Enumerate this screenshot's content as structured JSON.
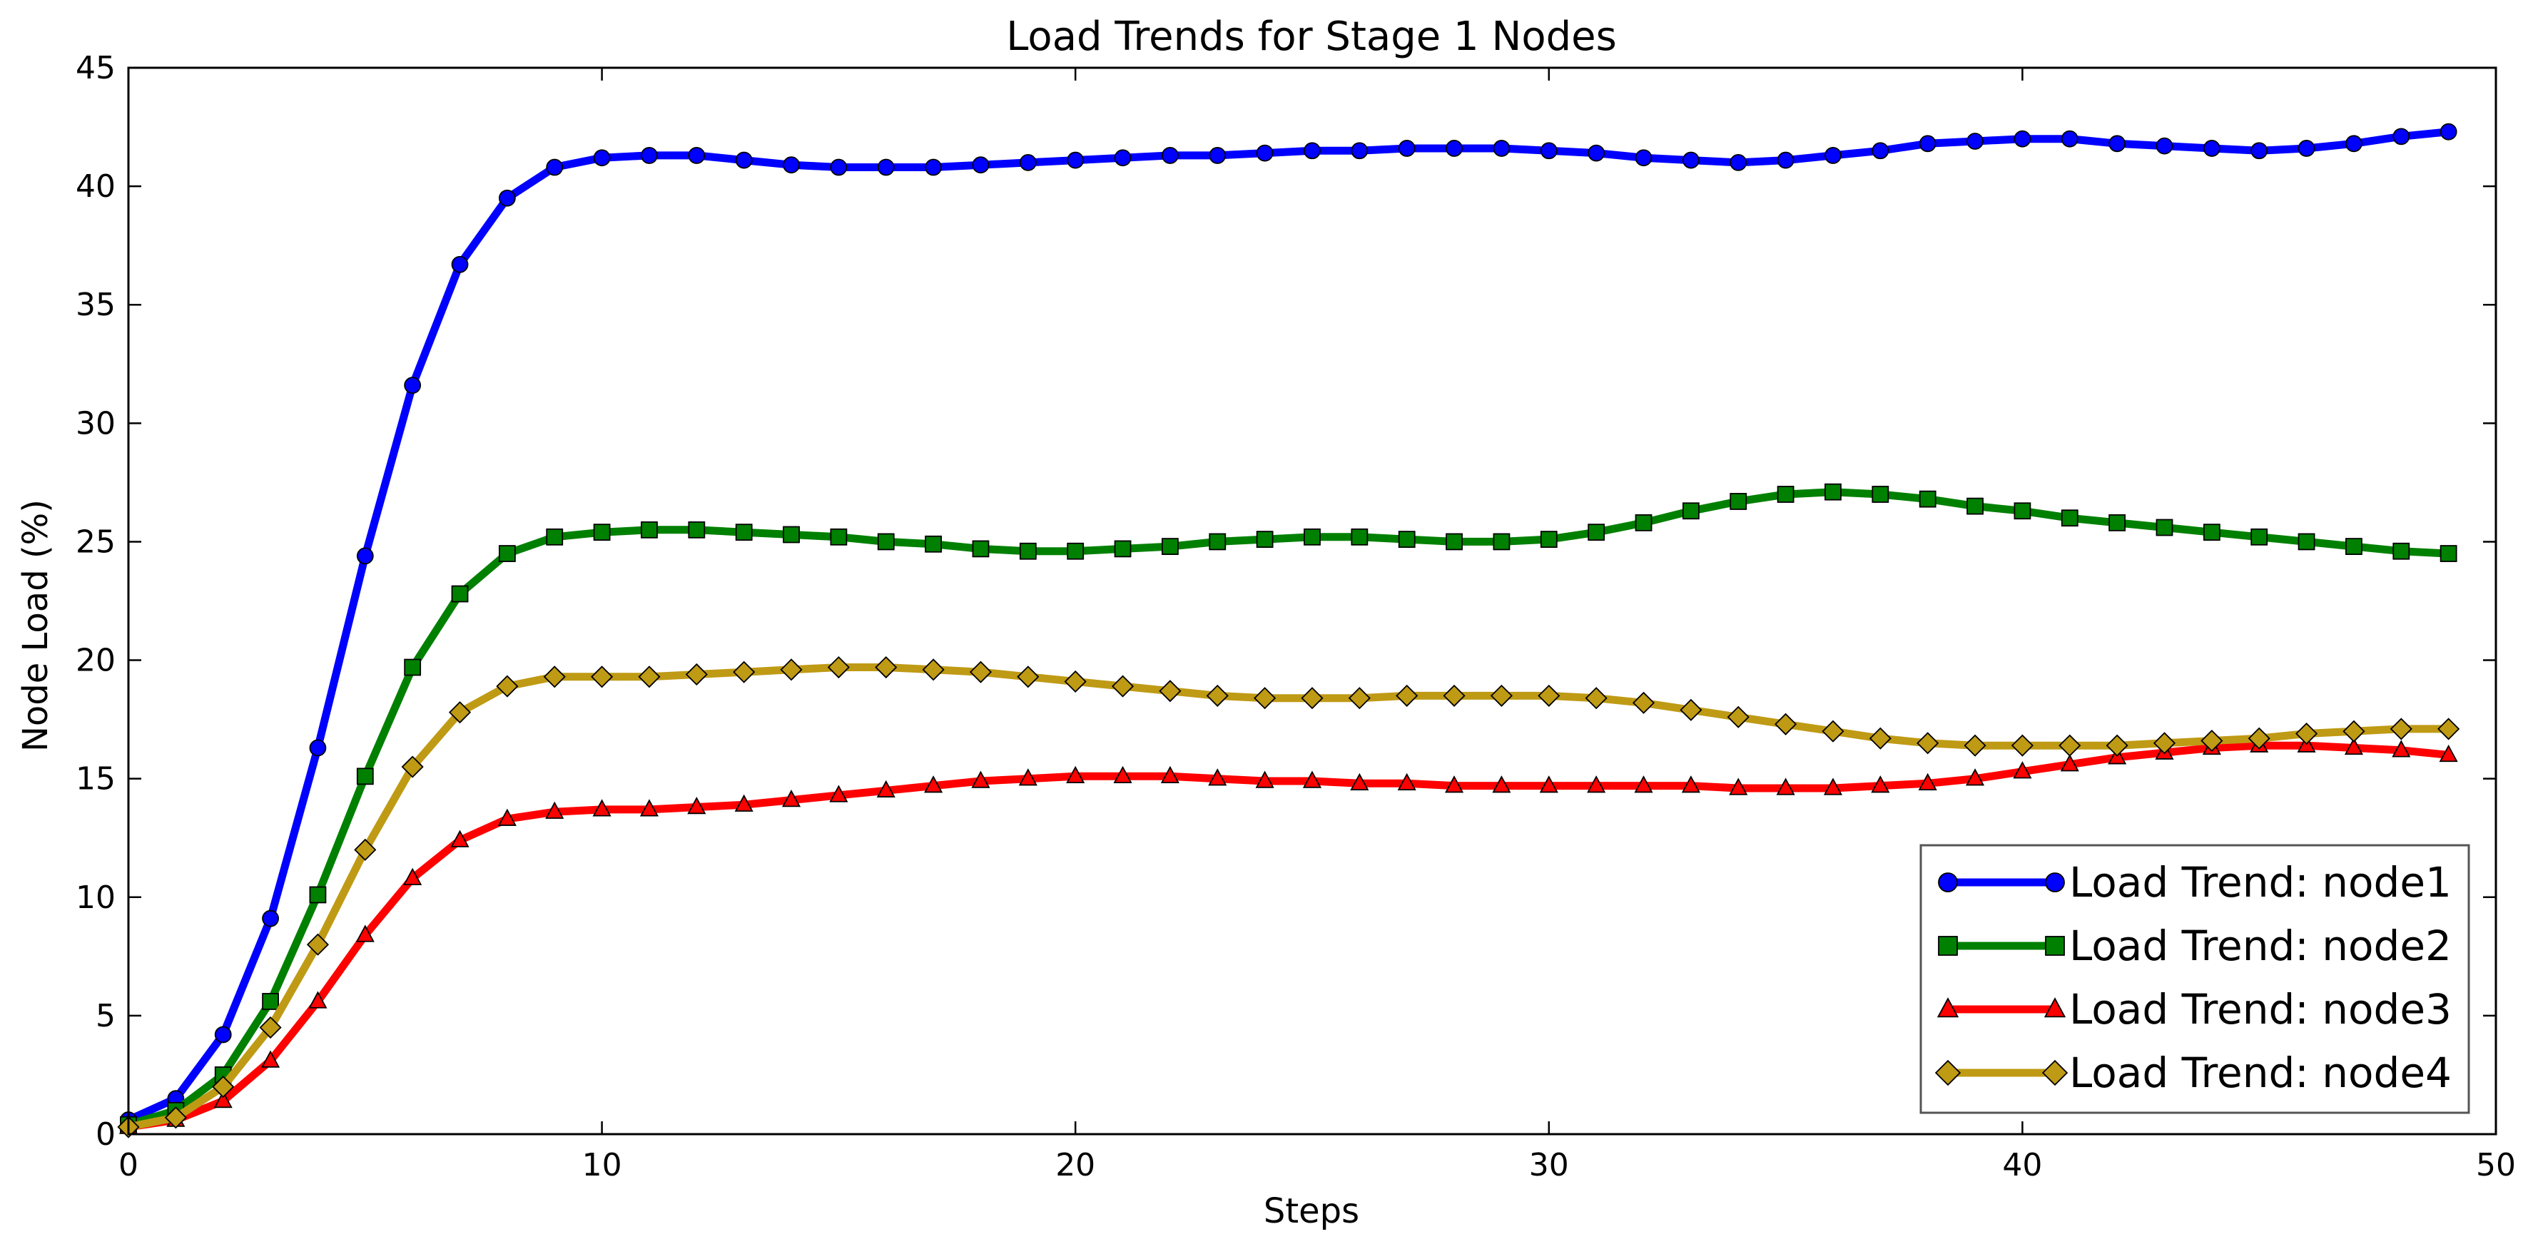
{
  "chart_data": {
    "type": "line",
    "title": "Load Trends for Stage 1 Nodes",
    "xlabel": "Steps",
    "ylabel": "Node Load (%)",
    "xlim": [
      0,
      50
    ],
    "ylim": [
      0,
      45
    ],
    "xticks": [
      0,
      10,
      20,
      30,
      40,
      50
    ],
    "yticks": [
      0,
      5,
      10,
      15,
      20,
      25,
      30,
      35,
      40,
      45
    ],
    "grid": false,
    "legend_position": "lower-right",
    "x": [
      0,
      1,
      2,
      3,
      4,
      5,
      6,
      7,
      8,
      9,
      10,
      11,
      12,
      13,
      14,
      15,
      16,
      17,
      18,
      19,
      20,
      21,
      22,
      23,
      24,
      25,
      26,
      27,
      28,
      29,
      30,
      31,
      32,
      33,
      34,
      35,
      36,
      37,
      38,
      39,
      40,
      41,
      42,
      43,
      44,
      45,
      46,
      47,
      48,
      49
    ],
    "series": [
      {
        "name": "Load Trend: node1",
        "color": "#0000ff",
        "marker": "circle",
        "values": [
          0.6,
          1.5,
          4.2,
          9.1,
          16.3,
          24.4,
          31.6,
          36.7,
          39.5,
          40.8,
          41.2,
          41.3,
          41.3,
          41.1,
          40.9,
          40.8,
          40.8,
          40.8,
          40.9,
          41.0,
          41.1,
          41.2,
          41.3,
          41.3,
          41.4,
          41.5,
          41.5,
          41.6,
          41.6,
          41.6,
          41.5,
          41.4,
          41.2,
          41.1,
          41.0,
          41.1,
          41.3,
          41.5,
          41.8,
          41.9,
          42.0,
          42.0,
          41.8,
          41.7,
          41.6,
          41.5,
          41.6,
          41.8,
          42.1,
          42.3
        ]
      },
      {
        "name": "Load Trend: node2",
        "color": "#008000",
        "marker": "square",
        "values": [
          0.4,
          1.0,
          2.5,
          5.6,
          10.1,
          15.1,
          19.7,
          22.8,
          24.5,
          25.2,
          25.4,
          25.5,
          25.5,
          25.4,
          25.3,
          25.2,
          25.0,
          24.9,
          24.7,
          24.6,
          24.6,
          24.7,
          24.8,
          25.0,
          25.1,
          25.2,
          25.2,
          25.1,
          25.0,
          25.0,
          25.1,
          25.4,
          25.8,
          26.3,
          26.7,
          27.0,
          27.1,
          27.0,
          26.8,
          26.5,
          26.3,
          26.0,
          25.8,
          25.6,
          25.4,
          25.2,
          25.0,
          24.8,
          24.6,
          24.5
        ]
      },
      {
        "name": "Load Trend: node3",
        "color": "#ff0000",
        "marker": "triangle",
        "values": [
          0.3,
          0.6,
          1.4,
          3.1,
          5.6,
          8.4,
          10.8,
          12.4,
          13.3,
          13.6,
          13.7,
          13.7,
          13.8,
          13.9,
          14.1,
          14.3,
          14.5,
          14.7,
          14.9,
          15.0,
          15.1,
          15.1,
          15.1,
          15.0,
          14.9,
          14.9,
          14.8,
          14.8,
          14.7,
          14.7,
          14.7,
          14.7,
          14.7,
          14.7,
          14.6,
          14.6,
          14.6,
          14.7,
          14.8,
          15.0,
          15.3,
          15.6,
          15.9,
          16.1,
          16.3,
          16.4,
          16.4,
          16.3,
          16.2,
          16.0
        ]
      },
      {
        "name": "Load Trend: node4",
        "color": "#bf9a14",
        "marker": "diamond",
        "values": [
          0.3,
          0.7,
          2.0,
          4.5,
          8.0,
          12.0,
          15.5,
          17.8,
          18.9,
          19.3,
          19.3,
          19.3,
          19.4,
          19.5,
          19.6,
          19.7,
          19.7,
          19.6,
          19.5,
          19.3,
          19.1,
          18.9,
          18.7,
          18.5,
          18.4,
          18.4,
          18.4,
          18.5,
          18.5,
          18.5,
          18.5,
          18.4,
          18.2,
          17.9,
          17.6,
          17.3,
          17.0,
          16.7,
          16.5,
          16.4,
          16.4,
          16.4,
          16.4,
          16.5,
          16.6,
          16.7,
          16.9,
          17.0,
          17.1,
          17.1
        ]
      }
    ]
  }
}
